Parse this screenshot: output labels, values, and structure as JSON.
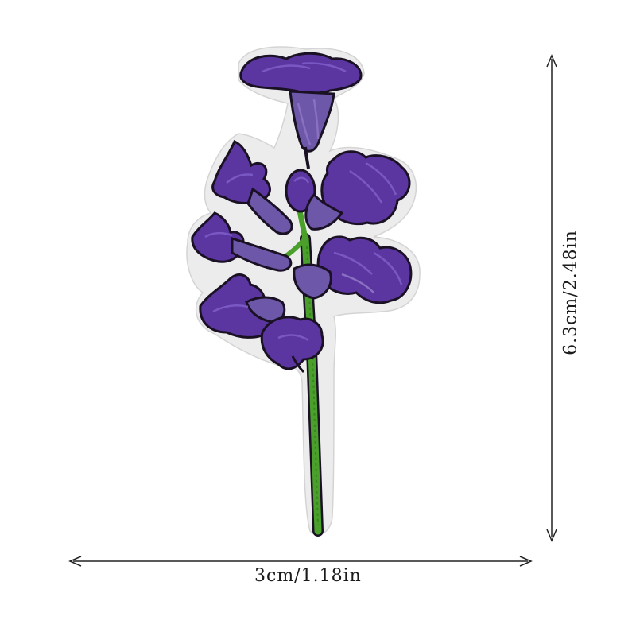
{
  "product": {
    "name": "Embroidered purple flower patch",
    "colors": {
      "background": "#ffffff",
      "felt": "#ececec",
      "petal_dark": "#4b2a8a",
      "petal_mid": "#6a45b0",
      "petal_light": "#8a70c0",
      "outline": "#1a1124",
      "stem": "#4aa02a",
      "stem_dark": "#2f7a1a",
      "arrow": "#222222"
    }
  },
  "dimensions": {
    "width_label": "3cm/1.18in",
    "height_label": "6.3cm/2.48in"
  }
}
